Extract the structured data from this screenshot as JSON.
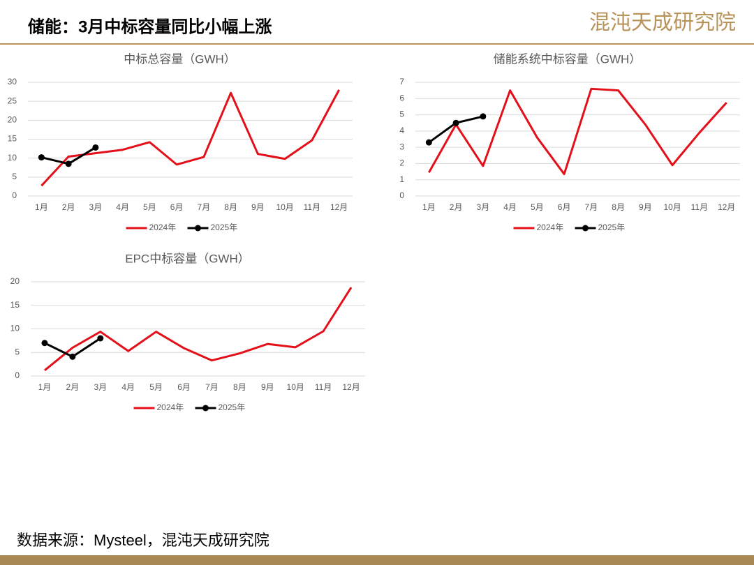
{
  "header": {
    "title": "储能：3月中标容量同比小幅上涨",
    "logo": "混沌天成研究院"
  },
  "source": "数据来源：Mysteel，混沌天成研究院",
  "chart_data": [
    {
      "type": "line",
      "title": "中标总容量（GWH）",
      "categories": [
        "1月",
        "2月",
        "3月",
        "4月",
        "5月",
        "6月",
        "7月",
        "8月",
        "9月",
        "10月",
        "11月",
        "12月"
      ],
      "series": [
        {
          "name": "2024年",
          "color": "#e3101a",
          "marker": false,
          "values": [
            2.7,
            10.4,
            11.3,
            12.2,
            14.2,
            8.3,
            10.3,
            27.2,
            11.1,
            9.8,
            14.7,
            28.0
          ]
        },
        {
          "name": "2025年",
          "color": "#000000",
          "marker": true,
          "values": [
            10.2,
            8.5,
            12.8,
            null,
            null,
            null,
            null,
            null,
            null,
            null,
            null,
            null
          ]
        }
      ],
      "ylim": [
        0,
        30
      ],
      "yticks": [
        0,
        5,
        10,
        15,
        20,
        25,
        30
      ],
      "grid": true,
      "legend": "bottom"
    },
    {
      "type": "line",
      "title": "储能系统中标容量（GWH）",
      "categories": [
        "1月",
        "2月",
        "3月",
        "4月",
        "5月",
        "6月",
        "7月",
        "8月",
        "9月",
        "10月",
        "11月",
        "12月"
      ],
      "series": [
        {
          "name": "2024年",
          "color": "#e3101a",
          "marker": false,
          "values": [
            1.45,
            4.4,
            1.85,
            6.5,
            3.6,
            1.35,
            6.6,
            6.5,
            4.4,
            1.9,
            3.9,
            5.75
          ]
        },
        {
          "name": "2025年",
          "color": "#000000",
          "marker": true,
          "values": [
            3.3,
            4.5,
            4.9,
            null,
            null,
            null,
            null,
            null,
            null,
            null,
            null,
            null
          ]
        }
      ],
      "ylim": [
        0,
        7
      ],
      "yticks": [
        0,
        1,
        2,
        3,
        4,
        5,
        6,
        7
      ],
      "grid": true,
      "legend": "bottom"
    },
    {
      "type": "line",
      "title": "EPC中标容量（GWH）",
      "categories": [
        "1月",
        "2月",
        "3月",
        "4月",
        "5月",
        "6月",
        "7月",
        "8月",
        "9月",
        "10月",
        "11月",
        "12月"
      ],
      "series": [
        {
          "name": "2024年",
          "color": "#e3101a",
          "marker": false,
          "values": [
            1.2,
            6.0,
            9.4,
            5.3,
            9.4,
            5.9,
            3.3,
            4.8,
            6.8,
            6.1,
            9.5,
            18.8
          ]
        },
        {
          "name": "2025年",
          "color": "#000000",
          "marker": true,
          "values": [
            7.0,
            4.1,
            8.0,
            null,
            null,
            null,
            null,
            null,
            null,
            null,
            null,
            null
          ]
        }
      ],
      "ylim": [
        0,
        20
      ],
      "yticks": [
        0,
        5,
        10,
        15,
        20
      ],
      "grid": true,
      "legend": "bottom"
    }
  ]
}
